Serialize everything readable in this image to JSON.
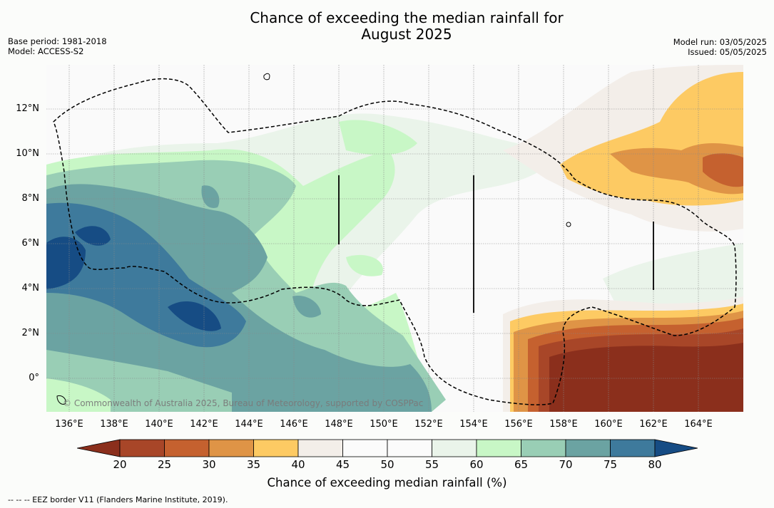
{
  "title": {
    "line1": "Chance of exceeding the median rainfall for",
    "line2": "August 2025"
  },
  "meta_left": {
    "base_period": "Base period: 1981-2018",
    "model": "Model: ACCESS-S2"
  },
  "meta_right": {
    "model_run": "Model run: 03/05/2025",
    "issued": "Issued: 05/05/2025"
  },
  "axes": {
    "latitude_labels": [
      "12°N",
      "10°N",
      "8°N",
      "6°N",
      "4°N",
      "2°N",
      "0°"
    ],
    "longitude_labels": [
      "136°E",
      "138°E",
      "140°E",
      "142°E",
      "144°E",
      "146°E",
      "148°E",
      "150°E",
      "152°E",
      "154°E",
      "156°E",
      "158°E",
      "160°E",
      "162°E",
      "164°E"
    ]
  },
  "copyright": "© Commonwealth of Australia 2025, Bureau of Meteorology, supported by COSPPac",
  "colorbar": {
    "ticks": [
      "20",
      "25",
      "30",
      "35",
      "40",
      "45",
      "50",
      "55",
      "60",
      "65",
      "70",
      "75",
      "80"
    ],
    "colors": [
      "#8b2f1c",
      "#a84628",
      "#c5612f",
      "#df9446",
      "#fdca63",
      "#f3eee9",
      "#fbfbfb",
      "#fbfbfb",
      "#eaf4ea",
      "#c8f7c6",
      "#99ceb5",
      "#6ba3a2",
      "#3e7a9c",
      "#164c84"
    ],
    "title": "Chance of exceeding median rainfall (%)"
  },
  "footnote": "--  --  -- EEZ border V11 (Flanders Marine Institute, 2019)."
}
